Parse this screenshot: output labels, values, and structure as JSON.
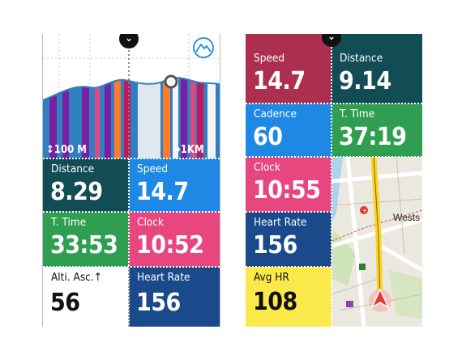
{
  "left_screen": {
    "elevation_scale_label": "↕100 M",
    "distance_scale_label": "↔1KM",
    "fields": [
      {
        "label": "Distance",
        "value": "8.29",
        "color": "#124c54"
      },
      {
        "label": "Speed",
        "value": "14.7",
        "color": "#1e88e5"
      },
      {
        "label": "T. Time",
        "value": "33:53",
        "color": "#2f9e50"
      },
      {
        "label": "Clock",
        "value": "10:52",
        "color": "#e8467f"
      },
      {
        "label": "Alti. Asc.↑",
        "value": "56",
        "color": "#ffffff"
      },
      {
        "label": "Heart Rate",
        "value": "156",
        "color": "#1a4a8c"
      }
    ]
  },
  "right_screen": {
    "fields": [
      {
        "label": "Speed",
        "value": "14.7",
        "color": "#ad2f50"
      },
      {
        "label": "Distance",
        "value": "9.14",
        "color": "#124c54"
      },
      {
        "label": "Cadence",
        "value": "60",
        "color": "#1e88e5"
      },
      {
        "label": "T. Time",
        "value": "37:19",
        "color": "#2f9e50"
      },
      {
        "label": "Clock",
        "value": "10:55",
        "color": "#e8467f"
      },
      {
        "label": "Heart Rate",
        "value": "156",
        "color": "#1a4a8c"
      },
      {
        "label": "Avg HR",
        "value": "108",
        "color": "#fbe84a"
      }
    ],
    "map": {
      "street_label": "Wests"
    }
  }
}
